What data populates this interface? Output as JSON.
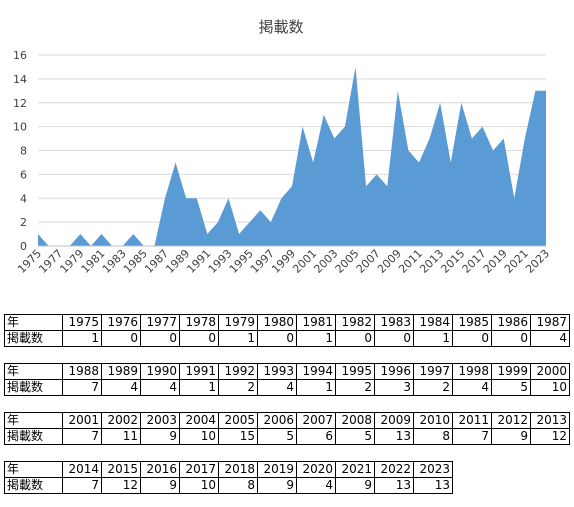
{
  "chart_data": {
    "type": "area",
    "title": "掲載数",
    "x": [
      "1975",
      "1976",
      "1977",
      "1978",
      "1979",
      "1980",
      "1981",
      "1982",
      "1983",
      "1984",
      "1985",
      "1986",
      "1987",
      "1988",
      "1989",
      "1990",
      "1991",
      "1992",
      "1993",
      "1994",
      "1995",
      "1996",
      "1997",
      "1998",
      "1999",
      "2000",
      "2001",
      "2002",
      "2003",
      "2004",
      "2005",
      "2006",
      "2007",
      "2008",
      "2009",
      "2010",
      "2011",
      "2012",
      "2013",
      "2014",
      "2015",
      "2016",
      "2017",
      "2018",
      "2019",
      "2020",
      "2021",
      "2022",
      "2023"
    ],
    "values": [
      1,
      0,
      0,
      0,
      1,
      0,
      1,
      0,
      0,
      1,
      0,
      0,
      4,
      7,
      4,
      4,
      1,
      2,
      4,
      1,
      2,
      3,
      2,
      4,
      5,
      10,
      7,
      11,
      9,
      10,
      15,
      5,
      6,
      5,
      13,
      8,
      7,
      9,
      12,
      7,
      12,
      9,
      10,
      8,
      9,
      4,
      9,
      13,
      13
    ],
    "ylim": [
      0,
      16
    ],
    "yticks": [
      "0",
      "2",
      "4",
      "6",
      "8",
      "10",
      "12",
      "14",
      "16"
    ],
    "xtick_labels": [
      "1975",
      "1977",
      "1979",
      "1981",
      "1983",
      "1985",
      "1987",
      "1989",
      "1991",
      "1993",
      "1995",
      "1997",
      "1999",
      "2001",
      "2003",
      "2005",
      "2007",
      "2009",
      "2011",
      "2013",
      "2015",
      "2017",
      "2019",
      "2021",
      "2023"
    ],
    "grid": true,
    "color": "#5b9bd5"
  },
  "table": {
    "row_label_year": "年",
    "row_label_count": "掲載数",
    "blocks": [
      {
        "years": [
          "1975",
          "1976",
          "1977",
          "1978",
          "1979",
          "1980",
          "1981",
          "1982",
          "1983",
          "1984",
          "1985",
          "1986",
          "1987"
        ],
        "counts": [
          "1",
          "0",
          "0",
          "0",
          "1",
          "0",
          "1",
          "0",
          "0",
          "1",
          "0",
          "0",
          "4"
        ]
      },
      {
        "years": [
          "1988",
          "1989",
          "1990",
          "1991",
          "1992",
          "1993",
          "1994",
          "1995",
          "1996",
          "1997",
          "1998",
          "1999",
          "2000"
        ],
        "counts": [
          "7",
          "4",
          "4",
          "1",
          "2",
          "4",
          "1",
          "2",
          "3",
          "2",
          "4",
          "5",
          "10"
        ]
      },
      {
        "years": [
          "2001",
          "2002",
          "2003",
          "2004",
          "2005",
          "2006",
          "2007",
          "2008",
          "2009",
          "2010",
          "2011",
          "2012",
          "2013"
        ],
        "counts": [
          "7",
          "11",
          "9",
          "10",
          "15",
          "5",
          "6",
          "5",
          "13",
          "8",
          "7",
          "9",
          "12"
        ]
      },
      {
        "years": [
          "2014",
          "2015",
          "2016",
          "2017",
          "2018",
          "2019",
          "2020",
          "2021",
          "2022",
          "2023"
        ],
        "counts": [
          "7",
          "12",
          "9",
          "10",
          "8",
          "9",
          "4",
          "9",
          "13",
          "13"
        ]
      }
    ]
  }
}
